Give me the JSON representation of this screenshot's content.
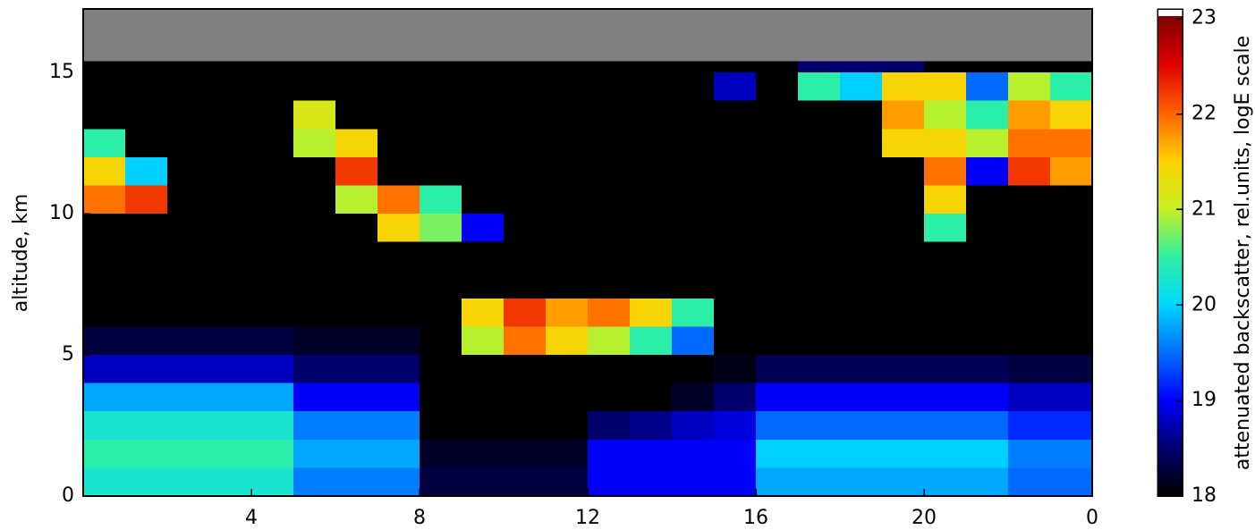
{
  "chart_data": {
    "type": "heatmap",
    "ylabel": "altitude, km",
    "colorbar_label": "attenuated backscatter, rel.units, logE scale",
    "xlim": [
      0,
      24
    ],
    "xticks": [
      4,
      8,
      12,
      16,
      20,
      {
        "value": 24,
        "label": "0"
      }
    ],
    "ylim": [
      0,
      17.25
    ],
    "yticks": [
      0,
      5,
      10,
      15
    ],
    "clim": [
      18,
      23.1
    ],
    "cticks": [
      18,
      19,
      20,
      21,
      22,
      23
    ],
    "colormap": [
      "#000000",
      "#00006e",
      "#0000ff",
      "#0070ff",
      "#00d8ff",
      "#30f0a0",
      "#c8f020",
      "#ffd000",
      "#ff6000",
      "#e00000",
      "#800000"
    ],
    "nodata_color": "#808080",
    "x_edges": [
      0,
      1,
      2,
      3,
      4,
      5,
      6,
      7,
      8,
      9,
      10,
      11,
      12,
      13,
      14,
      15,
      16,
      17,
      18,
      19,
      20,
      21,
      22,
      23,
      24
    ],
    "y_edges": [
      0,
      1,
      2,
      3,
      4,
      5,
      6,
      7,
      8,
      9,
      10,
      11,
      12,
      13,
      14,
      15,
      15.4,
      17.25
    ],
    "z": [
      [
        20.3,
        20.3,
        20.3,
        20.3,
        20.3,
        19.6,
        19.6,
        19.6,
        18.3,
        18.3,
        18.3,
        18.3,
        19.0,
        19.0,
        19.0,
        19.0,
        19.8,
        19.8,
        19.8,
        19.8,
        19.8,
        19.8,
        19.5,
        19.5
      ],
      [
        20.5,
        20.5,
        20.5,
        20.5,
        20.5,
        19.8,
        19.8,
        19.8,
        18.2,
        18.2,
        18.2,
        18.2,
        19.0,
        19.0,
        19.0,
        19.0,
        20.0,
        20.0,
        20.0,
        20.0,
        20.0,
        20.0,
        19.6,
        19.6
      ],
      [
        20.3,
        20.3,
        20.3,
        20.3,
        20.3,
        19.6,
        19.6,
        19.6,
        17.9,
        17.9,
        17.9,
        17.9,
        18.5,
        18.6,
        18.8,
        18.9,
        19.5,
        19.5,
        19.5,
        19.5,
        19.5,
        19.5,
        19.2,
        19.2
      ],
      [
        19.8,
        19.8,
        19.8,
        19.8,
        19.8,
        19.0,
        19.0,
        19.0,
        17.9,
        17.9,
        17.9,
        17.9,
        17.9,
        17.9,
        18.2,
        18.5,
        19.0,
        19.0,
        19.0,
        19.0,
        19.0,
        19.0,
        18.8,
        18.8
      ],
      [
        18.8,
        18.8,
        18.8,
        18.8,
        18.8,
        18.5,
        18.5,
        18.5,
        17.9,
        17.9,
        17.9,
        17.9,
        17.9,
        17.9,
        17.9,
        18.1,
        18.4,
        18.4,
        18.4,
        18.4,
        18.4,
        18.4,
        18.3,
        18.3
      ],
      [
        18.3,
        18.3,
        18.3,
        18.3,
        18.3,
        18.2,
        18.2,
        18.2,
        17.9,
        21.0,
        22.0,
        21.5,
        21.0,
        20.5,
        19.5,
        17.9,
        18.0,
        18.0,
        18.0,
        18.0,
        18.0,
        18.0,
        17.9,
        17.9
      ],
      [
        17.9,
        17.9,
        17.9,
        17.9,
        17.9,
        17.9,
        17.9,
        17.9,
        17.9,
        21.5,
        22.3,
        21.8,
        22.0,
        21.5,
        20.5,
        17.9,
        17.9,
        17.9,
        17.9,
        17.9,
        17.9,
        17.9,
        17.9,
        17.9
      ],
      [
        17.9,
        17.9,
        17.9,
        17.9,
        17.9,
        17.9,
        17.9,
        17.9,
        17.9,
        17.9,
        17.9,
        17.9,
        17.9,
        17.9,
        17.9,
        17.9,
        17.9,
        17.9,
        17.9,
        17.9,
        17.9,
        17.9,
        17.9,
        17.9
      ],
      [
        17.9,
        17.9,
        17.9,
        17.9,
        17.9,
        17.9,
        17.9,
        17.9,
        17.9,
        17.9,
        17.9,
        17.9,
        17.9,
        17.9,
        17.9,
        17.9,
        17.9,
        17.9,
        17.9,
        17.9,
        17.9,
        17.9,
        17.9,
        17.9
      ],
      [
        17.9,
        17.9,
        17.9,
        17.9,
        17.9,
        17.9,
        17.9,
        21.5,
        20.8,
        19.0,
        17.9,
        17.9,
        17.9,
        17.9,
        17.9,
        17.9,
        17.9,
        17.9,
        17.9,
        17.9,
        20.5,
        17.9,
        17.9,
        17.9
      ],
      [
        22.0,
        22.3,
        17.9,
        17.9,
        17.9,
        17.9,
        21.0,
        22.0,
        20.5,
        17.9,
        17.9,
        17.9,
        17.9,
        17.9,
        17.9,
        17.9,
        17.9,
        17.9,
        17.9,
        17.9,
        21.5,
        17.9,
        17.9,
        17.9
      ],
      [
        21.5,
        20.0,
        17.9,
        17.9,
        17.9,
        17.9,
        22.3,
        17.9,
        17.9,
        17.9,
        17.9,
        17.9,
        17.9,
        17.9,
        17.9,
        17.9,
        17.9,
        17.9,
        17.9,
        17.9,
        22.0,
        19.0,
        22.3,
        21.8
      ],
      [
        20.5,
        17.9,
        17.9,
        17.9,
        17.9,
        21.0,
        21.5,
        17.9,
        17.9,
        17.9,
        17.9,
        17.9,
        17.9,
        17.9,
        17.9,
        17.9,
        17.9,
        17.9,
        17.9,
        21.5,
        21.5,
        21.0,
        22.0,
        22.0
      ],
      [
        17.9,
        17.9,
        17.9,
        17.9,
        17.9,
        21.2,
        17.9,
        17.9,
        17.9,
        17.9,
        17.9,
        17.9,
        17.9,
        17.9,
        17.9,
        17.9,
        17.9,
        17.9,
        17.9,
        21.8,
        21.0,
        20.5,
        21.8,
        21.5
      ],
      [
        17.9,
        17.9,
        17.9,
        17.9,
        17.9,
        17.9,
        17.9,
        17.9,
        17.9,
        17.9,
        17.9,
        17.9,
        17.9,
        17.9,
        17.9,
        18.8,
        17.9,
        20.5,
        20.0,
        21.5,
        21.5,
        19.5,
        21.0,
        20.5
      ],
      [
        17.9,
        17.9,
        17.9,
        17.9,
        17.9,
        17.9,
        17.9,
        17.9,
        17.9,
        17.9,
        17.9,
        17.9,
        17.9,
        17.9,
        17.9,
        17.9,
        17.9,
        18.5,
        18.5,
        18.5,
        17.9,
        17.9,
        17.9,
        17.9
      ],
      [
        null,
        null,
        null,
        null,
        null,
        null,
        null,
        null,
        null,
        null,
        null,
        null,
        null,
        null,
        null,
        null,
        null,
        null,
        null,
        null,
        null,
        null,
        null,
        null
      ]
    ]
  }
}
